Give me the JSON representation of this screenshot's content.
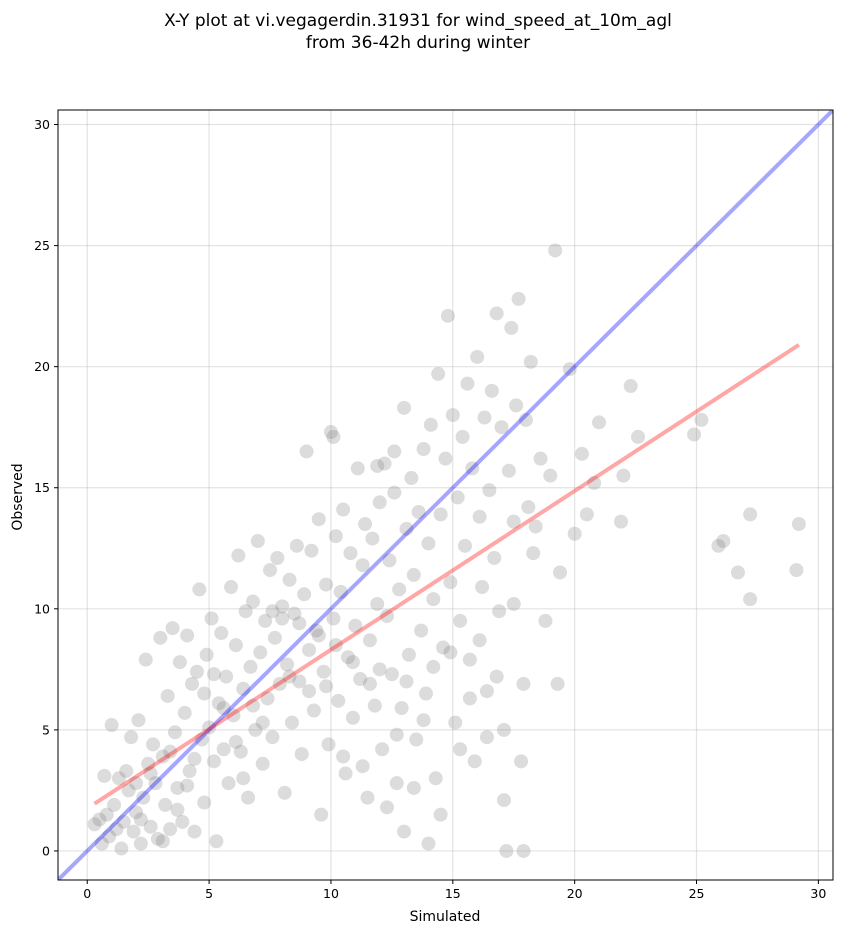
{
  "chart_data": {
    "type": "scatter",
    "title_lines": [
      "X-Y plot at vi.vegagerdin.31931 for wind_speed_at_10m_agl",
      "from 36-42h during winter"
    ],
    "xlabel": "Simulated",
    "ylabel": "Observed",
    "xlim": [
      -1.2,
      30.6
    ],
    "ylim": [
      -1.2,
      30.6
    ],
    "xticks": [
      0,
      5,
      10,
      15,
      20,
      25,
      30
    ],
    "yticks": [
      0,
      5,
      10,
      15,
      20,
      25,
      30
    ],
    "grid": true,
    "colors": {
      "points": "#808080",
      "identity_line": "#0000ff",
      "fit_line": "#ff0000",
      "grid": "#b0b0b0"
    },
    "identity_line": {
      "x": [
        -1.2,
        30.6
      ],
      "y": [
        -1.2,
        30.6
      ]
    },
    "fit_line": {
      "x": [
        0.3,
        29.2
      ],
      "y": [
        1.95,
        20.9
      ]
    },
    "points": [
      [
        0.3,
        1.1
      ],
      [
        0.5,
        1.3
      ],
      [
        0.6,
        0.3
      ],
      [
        0.7,
        3.1
      ],
      [
        0.8,
        1.5
      ],
      [
        0.9,
        0.6
      ],
      [
        1.0,
        5.2
      ],
      [
        1.1,
        1.9
      ],
      [
        1.2,
        0.9
      ],
      [
        1.3,
        3.0
      ],
      [
        1.4,
        0.1
      ],
      [
        1.5,
        1.2
      ],
      [
        1.6,
        3.3
      ],
      [
        1.7,
        2.5
      ],
      [
        1.8,
        4.7
      ],
      [
        1.9,
        0.8
      ],
      [
        2.0,
        1.6
      ],
      [
        2.1,
        5.4
      ],
      [
        2.2,
        0.3
      ],
      [
        2.3,
        2.2
      ],
      [
        2.4,
        7.9
      ],
      [
        2.5,
        3.6
      ],
      [
        2.6,
        1.0
      ],
      [
        2.7,
        4.4
      ],
      [
        2.8,
        2.8
      ],
      [
        2.9,
        0.5
      ],
      [
        3.0,
        8.8
      ],
      [
        3.1,
        3.9
      ],
      [
        3.2,
        1.9
      ],
      [
        3.3,
        6.4
      ],
      [
        3.4,
        0.9
      ],
      [
        3.5,
        9.2
      ],
      [
        3.6,
        4.9
      ],
      [
        3.7,
        2.6
      ],
      [
        3.8,
        7.8
      ],
      [
        3.9,
        1.2
      ],
      [
        4.0,
        5.7
      ],
      [
        4.1,
        8.9
      ],
      [
        4.2,
        3.3
      ],
      [
        4.3,
        6.9
      ],
      [
        4.4,
        0.8
      ],
      [
        4.5,
        7.4
      ],
      [
        4.6,
        10.8
      ],
      [
        4.7,
        4.6
      ],
      [
        4.8,
        2.0
      ],
      [
        4.9,
        8.1
      ],
      [
        5.0,
        5.1
      ],
      [
        5.1,
        9.6
      ],
      [
        5.2,
        3.7
      ],
      [
        5.3,
        0.4
      ],
      [
        5.4,
        6.1
      ],
      [
        5.5,
        9.0
      ],
      [
        5.6,
        4.2
      ],
      [
        5.7,
        7.2
      ],
      [
        5.8,
        2.8
      ],
      [
        5.9,
        10.9
      ],
      [
        6.0,
        5.6
      ],
      [
        6.1,
        8.5
      ],
      [
        6.2,
        12.2
      ],
      [
        6.3,
        4.1
      ],
      [
        6.4,
        6.7
      ],
      [
        6.5,
        9.9
      ],
      [
        6.6,
        2.2
      ],
      [
        6.7,
        7.6
      ],
      [
        6.8,
        10.3
      ],
      [
        6.9,
        5.0
      ],
      [
        7.0,
        12.8
      ],
      [
        7.1,
        8.2
      ],
      [
        7.2,
        3.6
      ],
      [
        7.3,
        9.5
      ],
      [
        7.4,
        6.3
      ],
      [
        7.5,
        11.6
      ],
      [
        7.6,
        4.7
      ],
      [
        7.7,
        8.8
      ],
      [
        7.8,
        12.1
      ],
      [
        7.9,
        6.9
      ],
      [
        8.0,
        10.1
      ],
      [
        8.1,
        2.4
      ],
      [
        8.2,
        7.7
      ],
      [
        8.3,
        11.2
      ],
      [
        8.4,
        5.3
      ],
      [
        8.5,
        9.8
      ],
      [
        8.6,
        12.6
      ],
      [
        8.7,
        7.0
      ],
      [
        8.8,
        4.0
      ],
      [
        8.9,
        10.6
      ],
      [
        9.0,
        16.5
      ],
      [
        9.1,
        8.3
      ],
      [
        9.2,
        12.4
      ],
      [
        9.3,
        5.8
      ],
      [
        9.4,
        9.1
      ],
      [
        9.5,
        13.7
      ],
      [
        9.6,
        1.5
      ],
      [
        9.7,
        7.4
      ],
      [
        9.8,
        11.0
      ],
      [
        9.9,
        4.4
      ],
      [
        10.0,
        17.3
      ],
      [
        10.1,
        9.6
      ],
      [
        10.2,
        13.0
      ],
      [
        10.3,
        6.2
      ],
      [
        10.4,
        10.7
      ],
      [
        10.5,
        14.1
      ],
      [
        10.6,
        3.2
      ],
      [
        10.7,
        8.0
      ],
      [
        10.8,
        12.3
      ],
      [
        10.9,
        5.5
      ],
      [
        11.0,
        9.3
      ],
      [
        11.1,
        15.8
      ],
      [
        11.2,
        7.1
      ],
      [
        11.3,
        11.8
      ],
      [
        11.4,
        13.5
      ],
      [
        11.5,
        2.2
      ],
      [
        11.6,
        8.7
      ],
      [
        11.7,
        12.9
      ],
      [
        11.8,
        6.0
      ],
      [
        11.9,
        10.2
      ],
      [
        12.0,
        14.4
      ],
      [
        12.1,
        4.2
      ],
      [
        12.2,
        16.0
      ],
      [
        12.3,
        9.7
      ],
      [
        12.4,
        12.0
      ],
      [
        12.5,
        7.3
      ],
      [
        12.6,
        14.8
      ],
      [
        12.7,
        2.8
      ],
      [
        12.8,
        10.8
      ],
      [
        12.9,
        5.9
      ],
      [
        13.0,
        18.3
      ],
      [
        13.1,
        13.3
      ],
      [
        13.2,
        8.1
      ],
      [
        13.3,
        15.4
      ],
      [
        13.4,
        11.4
      ],
      [
        13.5,
        4.6
      ],
      [
        13.6,
        14.0
      ],
      [
        13.7,
        9.1
      ],
      [
        13.8,
        16.6
      ],
      [
        13.9,
        6.5
      ],
      [
        14.0,
        12.7
      ],
      [
        14.1,
        17.6
      ],
      [
        14.2,
        10.4
      ],
      [
        14.3,
        3.0
      ],
      [
        14.4,
        19.7
      ],
      [
        14.5,
        13.9
      ],
      [
        14.6,
        8.4
      ],
      [
        14.7,
        16.2
      ],
      [
        14.8,
        22.1
      ],
      [
        14.9,
        11.1
      ],
      [
        15.0,
        18.0
      ],
      [
        15.1,
        5.3
      ],
      [
        15.2,
        14.6
      ],
      [
        15.3,
        9.5
      ],
      [
        15.4,
        17.1
      ],
      [
        15.5,
        12.6
      ],
      [
        15.6,
        19.3
      ],
      [
        15.7,
        7.9
      ],
      [
        15.8,
        15.8
      ],
      [
        15.9,
        3.7
      ],
      [
        16.0,
        20.4
      ],
      [
        16.1,
        13.8
      ],
      [
        16.2,
        10.9
      ],
      [
        16.3,
        17.9
      ],
      [
        16.4,
        6.6
      ],
      [
        16.5,
        14.9
      ],
      [
        16.6,
        19.0
      ],
      [
        16.7,
        12.1
      ],
      [
        16.8,
        22.2
      ],
      [
        16.9,
        9.9
      ],
      [
        17.0,
        17.5
      ],
      [
        17.1,
        5.0
      ],
      [
        17.2,
        0.0
      ],
      [
        17.3,
        15.7
      ],
      [
        17.4,
        21.6
      ],
      [
        17.5,
        13.6
      ],
      [
        17.6,
        18.4
      ],
      [
        17.7,
        22.8
      ],
      [
        17.8,
        3.7
      ],
      [
        17.9,
        0.0
      ],
      [
        18.0,
        17.8
      ],
      [
        18.1,
        14.2
      ],
      [
        18.2,
        20.2
      ],
      [
        18.4,
        13.4
      ],
      [
        18.6,
        16.2
      ],
      [
        18.8,
        9.5
      ],
      [
        19.0,
        15.5
      ],
      [
        19.2,
        24.8
      ],
      [
        19.3,
        6.9
      ],
      [
        19.4,
        11.5
      ],
      [
        19.8,
        19.9
      ],
      [
        20.0,
        13.1
      ],
      [
        20.3,
        16.4
      ],
      [
        20.5,
        13.9
      ],
      [
        20.8,
        15.2
      ],
      [
        21.0,
        17.7
      ],
      [
        21.9,
        13.6
      ],
      [
        22.0,
        15.5
      ],
      [
        22.3,
        19.2
      ],
      [
        22.6,
        17.1
      ],
      [
        24.9,
        17.2
      ],
      [
        25.2,
        17.8
      ],
      [
        25.9,
        12.6
      ],
      [
        26.1,
        12.8
      ],
      [
        26.7,
        11.5
      ],
      [
        27.2,
        10.4
      ],
      [
        27.2,
        13.9
      ],
      [
        29.1,
        11.6
      ],
      [
        29.2,
        13.5
      ],
      [
        2.0,
        2.8
      ],
      [
        2.2,
        1.3
      ],
      [
        2.6,
        3.2
      ],
      [
        3.1,
        0.4
      ],
      [
        3.4,
        4.1
      ],
      [
        3.7,
        1.7
      ],
      [
        4.1,
        2.7
      ],
      [
        4.4,
        3.8
      ],
      [
        4.8,
        6.5
      ],
      [
        5.2,
        7.3
      ],
      [
        5.6,
        5.9
      ],
      [
        6.1,
        4.5
      ],
      [
        6.4,
        3.0
      ],
      [
        6.8,
        6.0
      ],
      [
        7.2,
        5.3
      ],
      [
        7.6,
        9.9
      ],
      [
        8.0,
        9.6
      ],
      [
        8.3,
        7.2
      ],
      [
        8.7,
        9.4
      ],
      [
        9.1,
        6.6
      ],
      [
        9.5,
        8.9
      ],
      [
        9.8,
        6.8
      ],
      [
        10.2,
        8.5
      ],
      [
        10.5,
        3.9
      ],
      [
        10.9,
        7.8
      ],
      [
        11.3,
        3.5
      ],
      [
        11.6,
        6.9
      ],
      [
        12.0,
        7.5
      ],
      [
        12.3,
        1.8
      ],
      [
        12.7,
        4.8
      ],
      [
        13.1,
        7.0
      ],
      [
        13.4,
        2.6
      ],
      [
        13.8,
        5.4
      ],
      [
        14.2,
        7.6
      ],
      [
        14.5,
        1.5
      ],
      [
        14.9,
        8.2
      ],
      [
        15.3,
        4.2
      ],
      [
        15.7,
        6.3
      ],
      [
        16.1,
        8.7
      ],
      [
        16.4,
        4.7
      ],
      [
        16.8,
        7.2
      ],
      [
        17.1,
        2.1
      ],
      [
        17.5,
        10.2
      ],
      [
        17.9,
        6.9
      ],
      [
        18.3,
        12.3
      ],
      [
        13.0,
        0.8
      ],
      [
        14.0,
        0.3
      ],
      [
        12.6,
        16.5
      ],
      [
        11.9,
        15.9
      ],
      [
        10.1,
        17.1
      ]
    ]
  }
}
